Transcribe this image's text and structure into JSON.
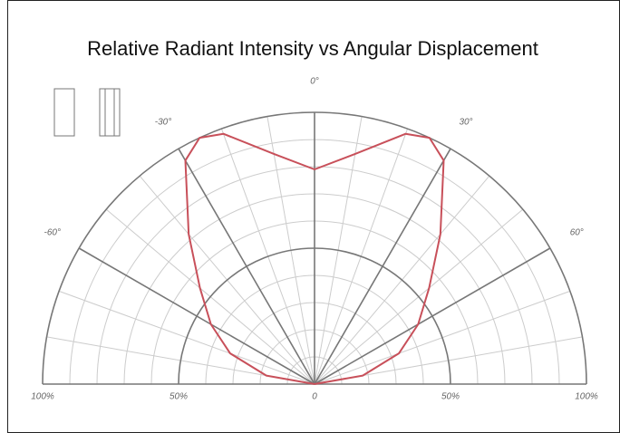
{
  "chart_data": {
    "type": "polar",
    "title": "Relative Radiant Intensity vs Angular Displacement",
    "theta": [
      -90,
      -80,
      -70,
      -60,
      -50,
      -40,
      -30,
      -25,
      -20,
      -10,
      0,
      10,
      20,
      25,
      30,
      40,
      50,
      60,
      70,
      80,
      90
    ],
    "series": [
      {
        "color": "#c8505a",
        "values": [
          0,
          18,
          33,
          44,
          55,
          72,
          95,
          100,
          98,
          86,
          79,
          86,
          98,
          100,
          95,
          72,
          55,
          44,
          33,
          18,
          0
        ]
      }
    ],
    "rlim": [
      0,
      100
    ],
    "rticks": [
      0,
      {
        "value": 50,
        "label": "50%"
      },
      {
        "value": 100,
        "label": "100%"
      }
    ],
    "rminor_ticks": [
      10,
      20,
      30,
      40,
      60,
      70,
      80,
      90
    ],
    "thetalim": [
      -90,
      90
    ],
    "thetaticks": [
      {
        "value": -60,
        "label": "-60°"
      },
      {
        "value": -30,
        "label": "-30°"
      },
      {
        "value": 0,
        "label": "0°"
      },
      {
        "value": 30,
        "label": "30°"
      },
      {
        "value": 60,
        "label": "60°"
      }
    ],
    "theta_minor_ticks": [
      -80,
      -70,
      -50,
      -40,
      -20,
      -10,
      10,
      20,
      40,
      50,
      70,
      80
    ],
    "grid": true
  }
}
